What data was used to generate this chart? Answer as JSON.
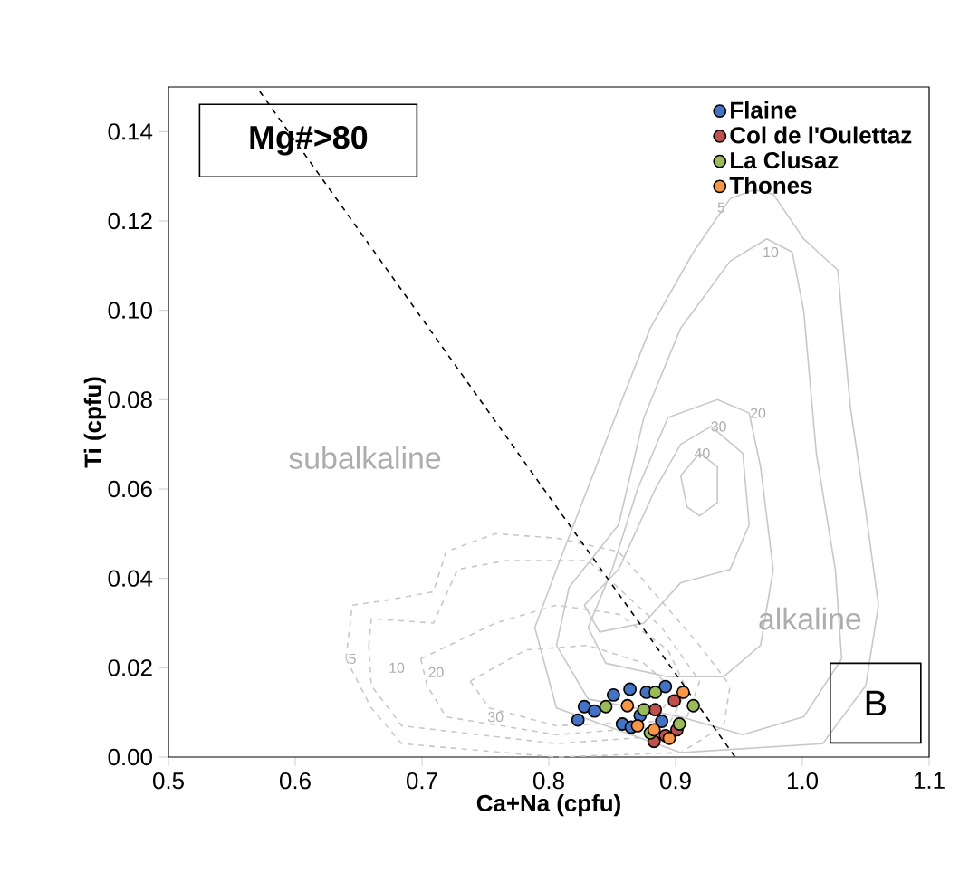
{
  "chart_data": {
    "type": "scatter",
    "xlabel": "Ca+Na (cpfu)",
    "ylabel": "Ti (cpfu)",
    "xlim": [
      0.5,
      1.1
    ],
    "ylim": [
      0,
      0.15
    ],
    "xticks": [
      {
        "value": 0.5,
        "label": "0.5"
      },
      {
        "value": 0.6,
        "label": "0.6"
      },
      {
        "value": 0.7,
        "label": "0.7"
      },
      {
        "value": 0.8,
        "label": "0.8"
      },
      {
        "value": 0.9,
        "label": "0.9"
      },
      {
        "value": 1.0,
        "label": "1.0"
      },
      {
        "value": 1.1,
        "label": "1.1"
      }
    ],
    "yticks": [
      {
        "value": 0,
        "label": "0.00"
      },
      {
        "value": 0.02,
        "label": "0.02"
      },
      {
        "value": 0.04,
        "label": "0.04"
      },
      {
        "value": 0.06,
        "label": "0.06"
      },
      {
        "value": 0.08,
        "label": "0.08"
      },
      {
        "value": 0.1,
        "label": "0.10"
      },
      {
        "value": 0.12,
        "label": "0.12"
      },
      {
        "value": 0.14,
        "label": "0.14"
      }
    ],
    "legend": "top right",
    "series": [
      {
        "type": "line",
        "marker": "none",
        "color": "#c8c8c8",
        "line_style": "solid",
        "x": [
          0.789,
          0.806,
          0.904,
          1.016,
          1.05,
          1.06,
          null,
          0.789,
          0.806,
          0.855,
          0.88,
          0.914,
          0.943,
          0.962,
          0.977,
          1.001,
          1.028,
          1.031,
          1.038,
          1.05,
          1.06
        ],
        "values": [
          0.029,
          0.011,
          0.001,
          0.003,
          0.016,
          0.034,
          null,
          0.029,
          0.042,
          0.078,
          0.096,
          0.113,
          0.125,
          0.127,
          0.126,
          0.116,
          0.109,
          0.099,
          0.078,
          0.055,
          0.034
        ]
      },
      {
        "type": "line",
        "marker": "none",
        "color": "#c8c8c8",
        "line_style": "solid",
        "x": [
          0.806,
          0.831,
          0.904,
          0.953,
          1.001,
          1.031,
          null,
          0.806,
          0.816,
          0.855,
          0.875,
          0.904,
          0.943,
          0.972,
          0.992,
          1.001,
          1.011,
          1.026,
          1.031
        ],
        "values": [
          0.025,
          0.013,
          0.009,
          0.005,
          0.009,
          0.022,
          null,
          0.025,
          0.038,
          0.052,
          0.076,
          0.096,
          0.111,
          0.116,
          0.113,
          0.1,
          0.068,
          0.042,
          0.022
        ]
      },
      {
        "type": "line",
        "marker": "none",
        "color": "#c8c8c8",
        "line_style": "solid",
        "x": [
          0.831,
          0.845,
          0.894,
          0.938,
          0.967,
          0.977,
          null,
          0.831,
          0.85,
          0.87,
          0.894,
          0.933,
          0.958,
          0.967,
          0.977
        ],
        "values": [
          0.029,
          0.021,
          0.018,
          0.018,
          0.025,
          0.042,
          null,
          0.029,
          0.042,
          0.06,
          0.076,
          0.08,
          0.077,
          0.065,
          0.042
        ]
      },
      {
        "type": "line",
        "marker": "none",
        "color": "#c8c8c8",
        "line_style": "solid",
        "x": [
          0.828,
          0.84,
          0.875,
          0.904,
          0.943,
          0.958,
          null,
          0.828,
          0.855,
          0.884,
          0.904,
          0.928,
          0.953,
          0.958
        ],
        "values": [
          0.034,
          0.028,
          0.03,
          0.039,
          0.042,
          0.052,
          null,
          0.034,
          0.042,
          0.06,
          0.07,
          0.074,
          0.068,
          0.052
        ]
      },
      {
        "type": "line",
        "marker": "none",
        "color": "#c8c8c8",
        "line_style": "solid",
        "x": [
          0.904,
          0.909,
          0.919,
          0.933,
          0.933,
          null,
          0.904,
          0.919,
          0.933
        ],
        "values": [
          0.063,
          0.056,
          0.054,
          0.057,
          0.065,
          null,
          0.063,
          0.068,
          0.065
        ]
      },
      {
        "type": "line",
        "marker": "none",
        "color": "#c8c8c8",
        "line_style": "dashed",
        "x": [
          0.64,
          0.66,
          0.684,
          0.806,
          0.904,
          0.938,
          0.943,
          null,
          0.64,
          0.645,
          0.67,
          0.709,
          0.719,
          0.758,
          0.806,
          0.855,
          0.919,
          0.943
        ],
        "values": [
          0.022,
          0.011,
          0.003,
          0,
          0.001,
          0.007,
          0.016,
          null,
          0.022,
          0.034,
          0.035,
          0.037,
          0.046,
          0.05,
          0.049,
          0.046,
          0.025,
          0.016
        ]
      },
      {
        "type": "line",
        "marker": "none",
        "color": "#c8c8c8",
        "line_style": "dashed",
        "x": [
          0.658,
          0.66,
          0.684,
          0.806,
          0.904,
          0.919,
          null,
          0.658,
          0.66,
          0.709,
          0.728,
          0.767,
          0.831,
          0.889,
          0.919
        ],
        "values": [
          0.025,
          0.016,
          0.007,
          0.003,
          0.005,
          0.017,
          null,
          0.025,
          0.031,
          0.03,
          0.042,
          0.044,
          0.044,
          0.029,
          0.017
        ]
      },
      {
        "type": "line",
        "marker": "none",
        "color": "#c8c8c8",
        "line_style": "dashed",
        "x": [
          0.699,
          0.704,
          0.719,
          0.806,
          0.894,
          0.909,
          null,
          0.699,
          0.758,
          0.806,
          0.855,
          0.894,
          0.909
        ],
        "values": [
          0.022,
          0.016,
          0.009,
          0.005,
          0.007,
          0.015,
          null,
          0.022,
          0.03,
          0.034,
          0.032,
          0.024,
          0.015
        ]
      },
      {
        "type": "line",
        "marker": "none",
        "color": "#c8c8c8",
        "line_style": "dashed",
        "x": [
          0.738,
          0.753,
          0.806,
          0.884,
          0.899,
          null,
          0.738,
          0.782,
          0.831,
          0.875,
          0.899
        ],
        "values": [
          0.017,
          0.011,
          0.007,
          0.008,
          0.015,
          null,
          0.017,
          0.024,
          0.025,
          0.021,
          0.015
        ]
      },
      {
        "type": "line",
        "marker": "none",
        "color": "#000000",
        "line_style": "dashed",
        "x": [
          0.572,
          0.947
        ],
        "values": [
          0.149,
          0
        ]
      },
      {
        "name": "Flaine",
        "marker": "circle",
        "color": "#4472c4",
        "x": [
          0.823,
          0.828,
          0.836,
          0.851,
          0.864,
          0.858,
          0.865,
          0.892,
          0.877,
          0.872,
          0.889
        ],
        "values": [
          0.0083,
          0.0113,
          0.0103,
          0.0139,
          0.0152,
          0.0074,
          0.0067,
          0.0158,
          0.0145,
          0.0093,
          0.008
        ]
      },
      {
        "name": "Col de l'Oulettaz",
        "marker": "circle",
        "color": "#c0504d",
        "x": [
          0.884,
          0.883,
          0.899,
          0.901,
          0.892
        ],
        "values": [
          0.0106,
          0.0035,
          0.0126,
          0.0061,
          0.0048
        ]
      },
      {
        "name": "La Clusaz",
        "marker": "circle",
        "color": "#9bbb59",
        "x": [
          0.845,
          0.884,
          0.914,
          0.903,
          0.875,
          0.88
        ],
        "values": [
          0.0113,
          0.0145,
          0.0115,
          0.0074,
          0.0106,
          0.0054
        ]
      },
      {
        "name": "Thones",
        "marker": "circle",
        "color": "#f79646",
        "x": [
          0.862,
          0.906,
          0.87,
          0.883,
          0.895
        ],
        "values": [
          0.0115,
          0.0145,
          0.007,
          0.0061,
          0.0042
        ]
      }
    ],
    "annotations": [
      "Mg#>80",
      "B",
      "subalkaline",
      "alkaline",
      "5",
      "10",
      "20",
      "30",
      "40",
      "5",
      "10",
      "20",
      "30"
    ]
  }
}
